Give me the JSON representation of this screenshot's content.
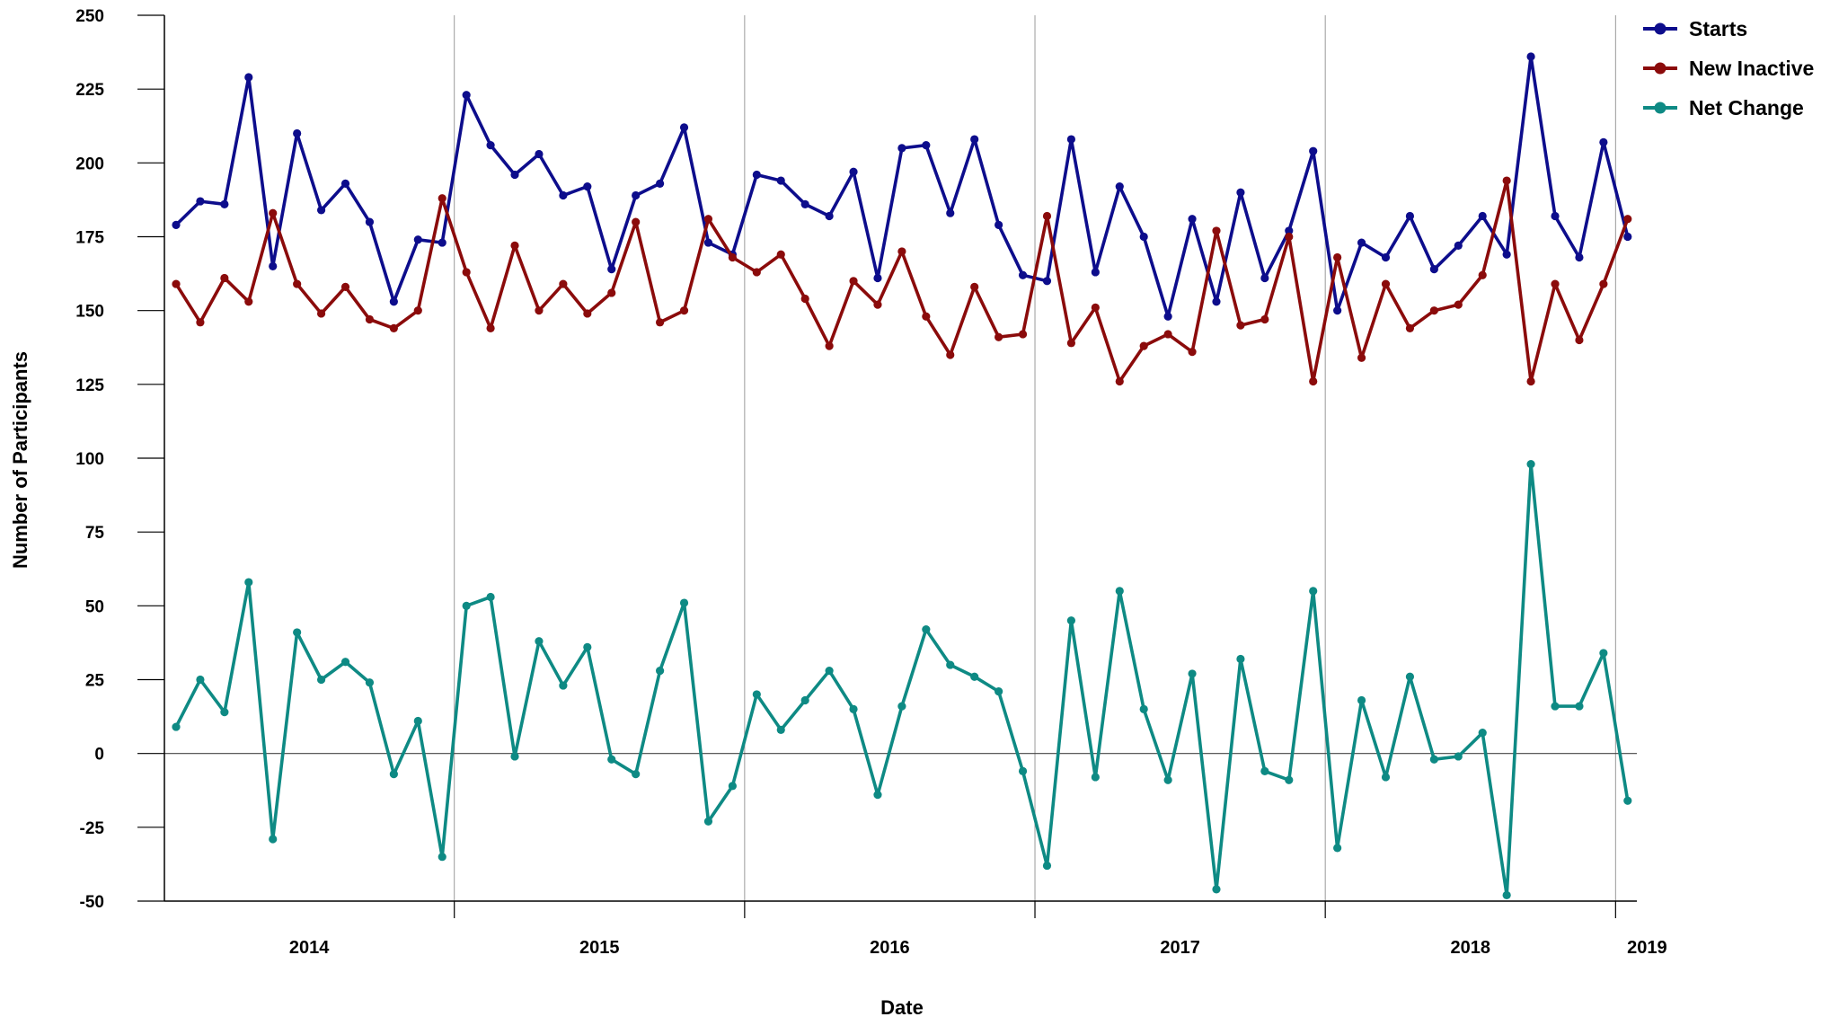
{
  "chart_data": {
    "type": "line",
    "xlabel": "Date",
    "ylabel": "Number of Participants",
    "ylim": [
      -50,
      250
    ],
    "yticks": [
      250,
      225,
      200,
      175,
      150,
      125,
      100,
      75,
      50,
      25,
      0,
      -25,
      -50
    ],
    "year_labels": [
      "2014",
      "2015",
      "2016",
      "2017",
      "2018",
      "2019"
    ],
    "x_start": "2014-01",
    "x_end": "2019-02",
    "legend_position": "top-right",
    "grid": "vertical lines at year boundaries, horizontal line at zero",
    "series": [
      {
        "name": "Starts",
        "color": "#0d0d8c",
        "values": [
          179,
          187,
          186,
          229,
          165,
          210,
          184,
          193,
          180,
          153,
          174,
          173,
          223,
          206,
          196,
          203,
          189,
          192,
          164,
          189,
          193,
          212,
          173,
          169,
          196,
          194,
          186,
          182,
          197,
          161,
          205,
          206,
          183,
          208,
          179,
          162,
          160,
          208,
          163,
          192,
          175,
          148,
          181,
          153,
          190,
          161,
          177,
          204,
          150,
          173,
          168,
          182,
          164,
          172,
          182,
          169,
          236,
          182,
          168,
          207,
          175
        ]
      },
      {
        "name": "New Inactive",
        "color": "#8b0b0b",
        "values": [
          159,
          146,
          161,
          153,
          183,
          159,
          149,
          158,
          147,
          144,
          150,
          188,
          163,
          144,
          172,
          150,
          159,
          149,
          156,
          180,
          146,
          150,
          181,
          168,
          163,
          169,
          154,
          138,
          160,
          152,
          170,
          148,
          135,
          158,
          141,
          142,
          182,
          139,
          151,
          126,
          138,
          142,
          136,
          177,
          145,
          147,
          175,
          126,
          168,
          134,
          159,
          144,
          150,
          152,
          162,
          194,
          126,
          159,
          140,
          159,
          181
        ]
      },
      {
        "name": "Net Change",
        "color": "#0e8a84",
        "values": [
          9,
          25,
          14,
          58,
          -29,
          41,
          25,
          31,
          24,
          -7,
          11,
          -35,
          50,
          53,
          -1,
          38,
          23,
          36,
          -2,
          -7,
          28,
          51,
          -23,
          -11,
          20,
          8,
          18,
          28,
          15,
          -14,
          16,
          42,
          30,
          26,
          21,
          -6,
          -38,
          45,
          -8,
          55,
          15,
          -9,
          27,
          -46,
          32,
          -6,
          -9,
          55,
          -32,
          18,
          -8,
          26,
          -2,
          -1,
          7,
          -48,
          98,
          16,
          16,
          34,
          -16
        ]
      }
    ]
  }
}
